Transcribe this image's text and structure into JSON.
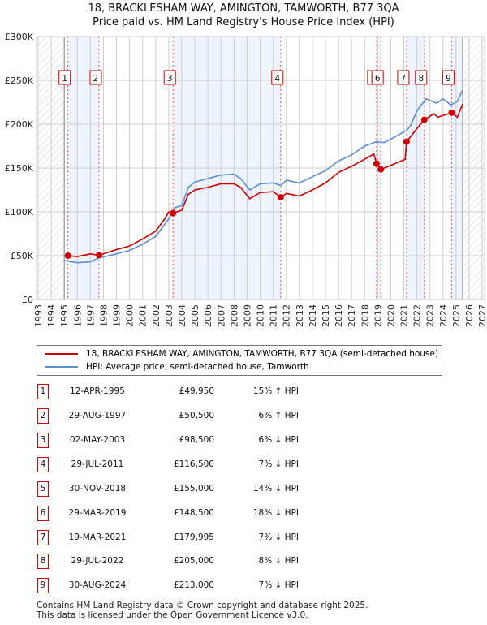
{
  "title_line1": "18, BRACKLESHAM WAY, AMINGTON, TAMWORTH, B77 3QA",
  "title_line2": "Price paid vs. HM Land Registry's House Price Index (HPI)",
  "colors": {
    "property": "#cc0000",
    "hpi": "#5b8fd0",
    "shade": "#eef3fc"
  },
  "chart_data": {
    "type": "line",
    "xlim": [
      1993,
      2027
    ],
    "ylim": [
      0,
      300000
    ],
    "x_ticks": [
      1993,
      1994,
      1995,
      1996,
      1997,
      1998,
      1999,
      2000,
      2001,
      2002,
      2003,
      2004,
      2005,
      2006,
      2007,
      2008,
      2009,
      2010,
      2011,
      2012,
      2013,
      2014,
      2015,
      2016,
      2017,
      2018,
      2019,
      2020,
      2021,
      2022,
      2023,
      2024,
      2025,
      2026,
      2027
    ],
    "y_ticks": [
      {
        "v": 0,
        "label": "£0"
      },
      {
        "v": 50000,
        "label": "£50K"
      },
      {
        "v": 100000,
        "label": "£100K"
      },
      {
        "v": 150000,
        "label": "£150K"
      },
      {
        "v": 200000,
        "label": "£200K"
      },
      {
        "v": 250000,
        "label": "£250K"
      },
      {
        "v": 300000,
        "label": "£300K"
      }
    ],
    "data_range": [
      1995.0,
      2025.5
    ],
    "series": [
      {
        "name": "18, BRACKLESHAM WAY, AMINGTON, TAMWORTH, B77 3QA (semi-detached house)",
        "key": "property",
        "points": [
          [
            1995.28,
            49950
          ],
          [
            1996,
            49000
          ],
          [
            1997,
            52000
          ],
          [
            1997.66,
            50500
          ],
          [
            1999,
            57000
          ],
          [
            2000,
            61000
          ],
          [
            2001,
            69000
          ],
          [
            2002,
            78000
          ],
          [
            2002.7,
            92000
          ],
          [
            2003.0,
            100000
          ],
          [
            2003.33,
            98500
          ],
          [
            2004,
            102000
          ],
          [
            2004.5,
            120000
          ],
          [
            2005,
            125000
          ],
          [
            2006,
            128000
          ],
          [
            2007,
            132000
          ],
          [
            2008,
            132000
          ],
          [
            2008.5,
            128000
          ],
          [
            2009.2,
            115000
          ],
          [
            2010,
            122000
          ],
          [
            2011,
            123000
          ],
          [
            2011.57,
            116500
          ],
          [
            2012,
            121000
          ],
          [
            2013,
            118000
          ],
          [
            2014,
            125000
          ],
          [
            2015,
            133000
          ],
          [
            2016,
            145000
          ],
          [
            2017,
            152000
          ],
          [
            2018,
            160000
          ],
          [
            2018.7,
            166000
          ],
          [
            2018.91,
            155000
          ],
          [
            2019.24,
            148500
          ],
          [
            2020,
            153000
          ],
          [
            2021.1,
            160000
          ],
          [
            2021.21,
            179995
          ],
          [
            2022,
            195000
          ],
          [
            2022.57,
            205000
          ],
          [
            2023.3,
            212000
          ],
          [
            2023.6,
            208000
          ],
          [
            2024,
            210000
          ],
          [
            2024.66,
            213000
          ],
          [
            2025.1,
            208000
          ],
          [
            2025.5,
            223000
          ]
        ]
      },
      {
        "name": "HPI: Average price, semi-detached house, Tamworth",
        "key": "hpi",
        "points": [
          [
            1995.0,
            44500
          ],
          [
            1996,
            42000
          ],
          [
            1997,
            43000
          ],
          [
            1997.66,
            47500
          ],
          [
            1999,
            52000
          ],
          [
            2000,
            56000
          ],
          [
            2001,
            63000
          ],
          [
            2002,
            72000
          ],
          [
            2003,
            92000
          ],
          [
            2003.5,
            105000
          ],
          [
            2004,
            107000
          ],
          [
            2004.5,
            128000
          ],
          [
            2005,
            134000
          ],
          [
            2006,
            138000
          ],
          [
            2007,
            142000
          ],
          [
            2008,
            143000
          ],
          [
            2008.5,
            138000
          ],
          [
            2009.2,
            125000
          ],
          [
            2010,
            132000
          ],
          [
            2011,
            133000
          ],
          [
            2011.6,
            130000
          ],
          [
            2012,
            136000
          ],
          [
            2013,
            133000
          ],
          [
            2014,
            140000
          ],
          [
            2015,
            147000
          ],
          [
            2016,
            158000
          ],
          [
            2017,
            165000
          ],
          [
            2018,
            175000
          ],
          [
            2018.9,
            180000
          ],
          [
            2019.5,
            179000
          ],
          [
            2020.5,
            187000
          ],
          [
            2021.2,
            193000
          ],
          [
            2021.5,
            198000
          ],
          [
            2022,
            215000
          ],
          [
            2022.7,
            229000
          ],
          [
            2023.5,
            224000
          ],
          [
            2024,
            229000
          ],
          [
            2024.6,
            222000
          ],
          [
            2025.1,
            226000
          ],
          [
            2025.5,
            239000
          ]
        ]
      }
    ],
    "sales": [
      {
        "n": "1",
        "t": 1995.28,
        "price": 49950
      },
      {
        "n": "2",
        "t": 1997.66,
        "price": 50500
      },
      {
        "n": "3",
        "t": 2003.33,
        "price": 98500
      },
      {
        "n": "4",
        "t": 2011.57,
        "price": 116500
      },
      {
        "n": "5",
        "t": 2018.91,
        "price": 155000
      },
      {
        "n": "6",
        "t": 2019.24,
        "price": 148500
      },
      {
        "n": "7",
        "t": 2021.21,
        "price": 179995
      },
      {
        "n": "8",
        "t": 2022.57,
        "price": 205000
      },
      {
        "n": "9",
        "t": 2024.66,
        "price": 213000
      }
    ]
  },
  "legend": {
    "property": "18, BRACKLESHAM WAY, AMINGTON, TAMWORTH, B77 3QA (semi-detached house)",
    "hpi": "HPI: Average price, semi-detached house, Tamworth"
  },
  "table": [
    {
      "n": "1",
      "date": "12-APR-1995",
      "price": "£49,950",
      "pct": "15% ↑ HPI"
    },
    {
      "n": "2",
      "date": "29-AUG-1997",
      "price": "£50,500",
      "pct": "6% ↑ HPI"
    },
    {
      "n": "3",
      "date": "02-MAY-2003",
      "price": "£98,500",
      "pct": "6% ↓ HPI"
    },
    {
      "n": "4",
      "date": "29-JUL-2011",
      "price": "£116,500",
      "pct": "7% ↓ HPI"
    },
    {
      "n": "5",
      "date": "30-NOV-2018",
      "price": "£155,000",
      "pct": "14% ↓ HPI"
    },
    {
      "n": "6",
      "date": "29-MAR-2019",
      "price": "£148,500",
      "pct": "18% ↓ HPI"
    },
    {
      "n": "7",
      "date": "19-MAR-2021",
      "price": "£179,995",
      "pct": "7% ↓ HPI"
    },
    {
      "n": "8",
      "date": "29-JUL-2022",
      "price": "£205,000",
      "pct": "8% ↓ HPI"
    },
    {
      "n": "9",
      "date": "30-AUG-2024",
      "price": "£213,000",
      "pct": "7% ↓ HPI"
    }
  ],
  "footer": {
    "line1": "Contains HM Land Registry data © Crown copyright and database right 2025.",
    "line2": "This data is licensed under the Open Government Licence v3.0."
  }
}
